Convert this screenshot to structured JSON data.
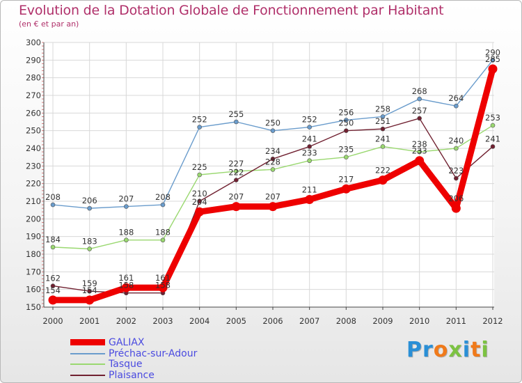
{
  "title": "Evolution de la Dotation Globale de Fonctionnement par Habitant",
  "subtitle": "(en € et par an)",
  "logo": {
    "text": "Proxiti",
    "letters": [
      "P",
      "r",
      "o",
      "x",
      "i",
      "t",
      "i"
    ],
    "colors": [
      "#2a8fd6",
      "#2a8fd6",
      "#f07a1a",
      "#7cc242",
      "#2a8fd6",
      "#f07a1a",
      "#7cc242"
    ]
  },
  "chart_data": {
    "type": "line",
    "title": "Evolution de la Dotation Globale de Fonctionnement par Habitant",
    "subtitle": "(en € et par an)",
    "xlabel": "",
    "ylabel": "",
    "categories": [
      "2000",
      "2001",
      "2002",
      "2003",
      "2004",
      "2005",
      "2006",
      "2007",
      "2008",
      "2009",
      "2010",
      "2011",
      "2012"
    ],
    "ylim": [
      150,
      300
    ],
    "yticks": [
      150,
      160,
      170,
      180,
      190,
      200,
      210,
      220,
      230,
      240,
      250,
      260,
      270,
      280,
      290,
      300
    ],
    "grid": true,
    "legend_position": "bottom-left",
    "series": [
      {
        "name": "GALIAX",
        "color": "#ee0000",
        "values": [
          154,
          154,
          161,
          161,
          204,
          207,
          207,
          211,
          217,
          222,
          233,
          206,
          285
        ]
      },
      {
        "name": "Préchac-sur-Adour",
        "color": "#6a9ccc",
        "values": [
          208,
          206,
          207,
          208,
          252,
          255,
          250,
          252,
          256,
          258,
          268,
          264,
          290
        ]
      },
      {
        "name": "Tasque",
        "color": "#9ad870",
        "values": [
          184,
          183,
          188,
          188,
          225,
          227,
          228,
          233,
          235,
          241,
          238,
          240,
          253
        ]
      },
      {
        "name": "Plaisance",
        "color": "#702030",
        "values": [
          162,
          159,
          158,
          158,
          210,
          222,
          234,
          241,
          250,
          251,
          257,
          223,
          241
        ]
      }
    ]
  }
}
